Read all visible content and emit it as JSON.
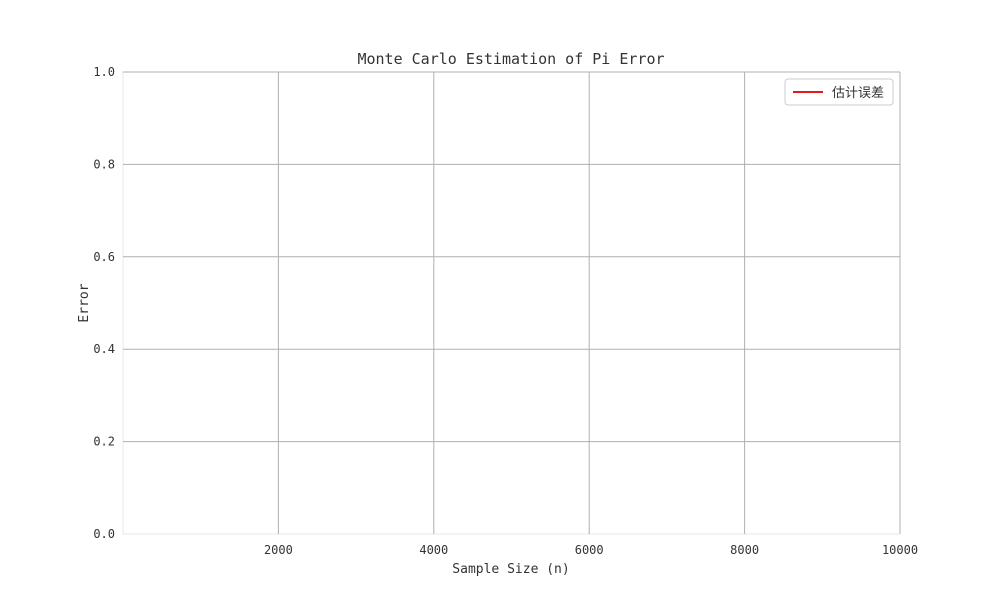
{
  "chart_data": {
    "type": "line",
    "title": "Monte Carlo Estimation of Pi Error",
    "xlabel": "Sample Size (n)",
    "ylabel": "Error",
    "xlim": [
      0,
      10000
    ],
    "ylim": [
      0,
      1.0
    ],
    "x_ticks": [
      2000,
      4000,
      6000,
      8000,
      10000
    ],
    "x_tick_labels": [
      "2000",
      "4000",
      "6000",
      "8000",
      "10000"
    ],
    "y_ticks": [
      0,
      0.2,
      0.4,
      0.6,
      0.8,
      1.0
    ],
    "y_tick_labels": [
      "0.0",
      "0.2",
      "0.4",
      "0.6",
      "0.8",
      "1.0"
    ],
    "grid": true,
    "legend_position": "top-right",
    "series": [
      {
        "name": "估计误差",
        "color": "#e41a1c",
        "x": [],
        "y": []
      }
    ]
  }
}
